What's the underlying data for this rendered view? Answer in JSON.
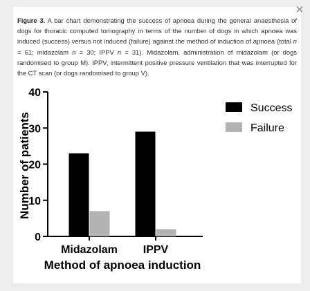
{
  "caption": {
    "label": "Figure 3.",
    "line1": " A bar chart demonstrating the success of apnoea during the general anaesthesia of dogs for thoracic computed tomography in terms of the number of dogs in which apnoea was induced (success) versus not induced (failure) against the method of induction of apnoea (total ",
    "n1": "n",
    "t1": " = 61; midazolam ",
    "n2": "n",
    "t2": " = 30; IPPV ",
    "n3": "n",
    "t3": " = 31). Midazolam, administration of midazolam (or dogs randomised to group M). IPPV, intermittent positive pressure ventilation that was interrupted for the CT scan (or dogs randomised to group V)."
  },
  "close_icon": "close-icon",
  "colors": {
    "success": "#000000",
    "failure": "#b3b3b3",
    "axis": "#000000",
    "caption": "#333333"
  },
  "chart_data": {
    "type": "bar",
    "categories": [
      "Midazolam",
      "IPPV"
    ],
    "series": [
      {
        "name": "Success",
        "values": [
          23,
          29
        ]
      },
      {
        "name": "Failure",
        "values": [
          7,
          2
        ]
      }
    ],
    "title": "",
    "xlabel": "Method of apnoea induction",
    "ylabel": "Number of patients",
    "ylim": [
      0,
      40
    ],
    "yticks": [
      0,
      10,
      20,
      30,
      40
    ],
    "grid": false,
    "legend": "top-right"
  }
}
